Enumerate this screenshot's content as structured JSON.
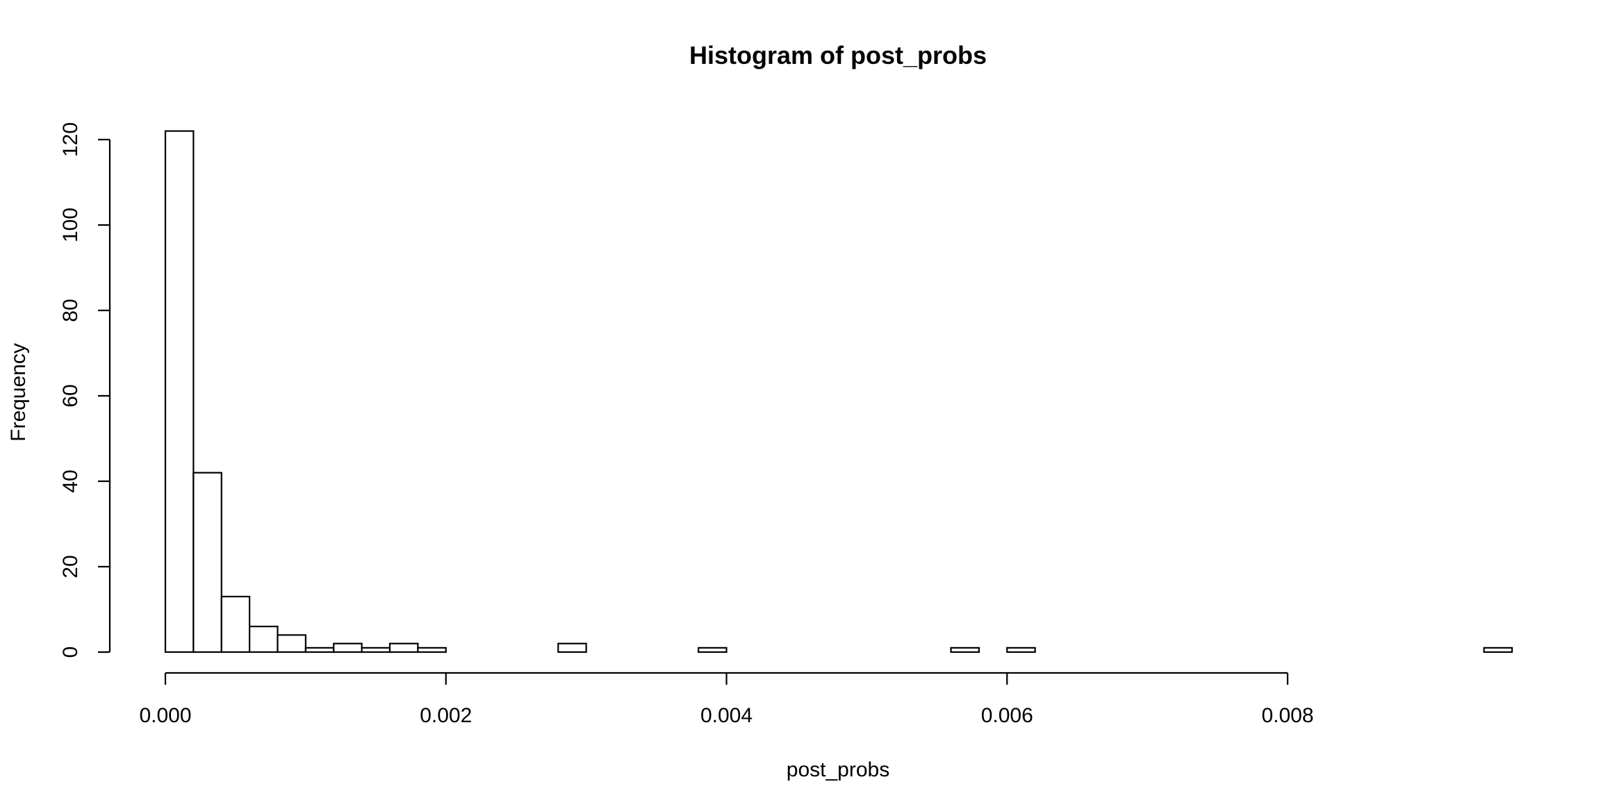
{
  "chart_data": {
    "type": "bar",
    "title": "Histogram of post_probs",
    "xlabel": "post_probs",
    "ylabel": "Frequency",
    "bin_width": 0.0002,
    "bin_start": 0.0,
    "values": [
      122,
      42,
      13,
      6,
      4,
      1,
      2,
      1,
      2,
      1,
      0,
      0,
      0,
      0,
      2,
      0,
      0,
      0,
      0,
      1,
      0,
      0,
      0,
      0,
      0,
      0,
      0,
      0,
      1,
      0,
      1,
      0,
      0,
      0,
      0,
      0,
      0,
      0,
      0,
      0,
      0,
      0,
      0,
      0,
      0,
      0,
      0,
      1
    ],
    "xlim": [
      0.0,
      0.0096
    ],
    "ylim": [
      0,
      122
    ],
    "xticks": [
      0.0,
      0.002,
      0.004,
      0.006,
      0.008
    ],
    "xtick_labels": [
      "0.000",
      "0.002",
      "0.004",
      "0.006",
      "0.008"
    ],
    "yticks": [
      0,
      20,
      40,
      60,
      80,
      100,
      120
    ],
    "ytick_labels": [
      "0",
      "20",
      "40",
      "60",
      "80",
      "100",
      "120"
    ],
    "grid": false
  }
}
